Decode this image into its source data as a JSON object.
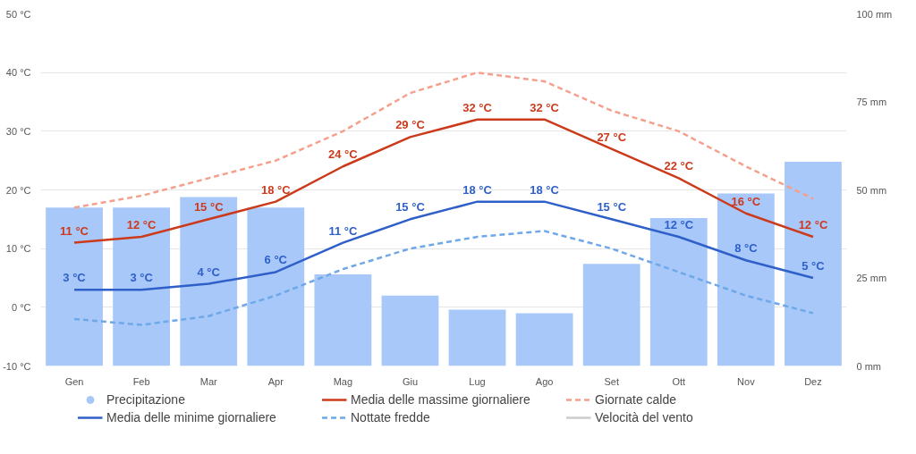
{
  "chart_data": {
    "type": "line",
    "categories": [
      "Gen",
      "Feb",
      "Mar",
      "Apr",
      "Mag",
      "Giu",
      "Lug",
      "Ago",
      "Set",
      "Ott",
      "Nov",
      "Dez"
    ],
    "ylim": [
      -10,
      50
    ],
    "yticks": [
      {
        "value": -10,
        "label": "-10 °C"
      },
      {
        "value": 0,
        "label": "0 °C"
      },
      {
        "value": 10,
        "label": "10 °C"
      },
      {
        "value": 20,
        "label": "20 °C"
      },
      {
        "value": 30,
        "label": "30 °C"
      },
      {
        "value": 40,
        "label": "40 °C"
      },
      {
        "value": 50,
        "label": "50 °C"
      }
    ],
    "y2lim": [
      0,
      100
    ],
    "y2ticks": [
      {
        "value": 0,
        "label": "0 mm"
      },
      {
        "value": 25,
        "label": "25 mm"
      },
      {
        "value": 50,
        "label": "50 mm"
      },
      {
        "value": 75,
        "label": "75 mm"
      },
      {
        "value": 100,
        "label": "100 mm"
      }
    ],
    "grid": "y",
    "legend": "bottom",
    "series": [
      {
        "name": "Precipitazione",
        "type": "bar",
        "axis": "y2",
        "color": "#a8c8fa",
        "values": [
          45,
          45,
          48,
          45,
          26,
          20,
          16,
          15,
          29,
          42,
          49,
          58
        ]
      },
      {
        "name": "Media delle massime giornaliere",
        "line_style": "solid",
        "color": "#cc3a1c",
        "values": [
          11,
          12,
          15,
          18,
          24,
          29,
          32,
          32,
          27,
          22,
          16,
          12
        ],
        "value_labels": [
          "11 °C",
          "12 °C",
          "15 °C",
          "18 °C",
          "24 °C",
          "29 °C",
          "32 °C",
          "32 °C",
          "27 °C",
          "22 °C",
          "16 °C",
          "12 °C"
        ]
      },
      {
        "name": "Giornate calde",
        "line_style": "dashed",
        "color": "#f5a08c",
        "values": [
          17,
          19,
          22,
          25,
          30,
          36.5,
          40,
          38.5,
          33.5,
          30,
          24,
          18.5
        ]
      },
      {
        "name": "Media delle minime giornaliere",
        "line_style": "solid",
        "color": "#2f5fc8",
        "values": [
          3,
          3,
          4,
          6,
          11,
          15,
          18,
          18,
          15,
          12,
          8,
          5
        ],
        "value_labels": [
          "3 °C",
          "3 °C",
          "4 °C",
          "6 °C",
          "11 °C",
          "15 °C",
          "18 °C",
          "18 °C",
          "15 °C",
          "12 °C",
          "8 °C",
          "5 °C"
        ]
      },
      {
        "name": "Nottate fredde",
        "line_style": "dashed",
        "color": "#6ea8e8",
        "values": [
          -2,
          -3,
          -1.5,
          2,
          6.5,
          10,
          12,
          13,
          10,
          6,
          2,
          -1
        ]
      },
      {
        "name": "Velocità del vento",
        "line_style": "solid",
        "color": "#cccccc",
        "values": [
          null,
          null,
          null,
          null,
          null,
          null,
          null,
          null,
          null,
          null,
          null,
          null
        ]
      }
    ]
  }
}
